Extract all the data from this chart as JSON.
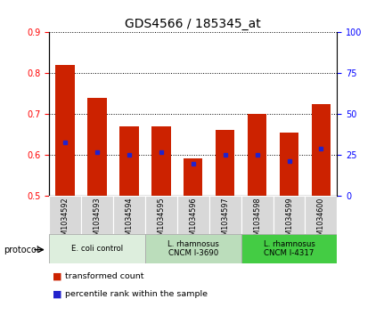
{
  "title": "GDS4566 / 185345_at",
  "samples": [
    "GSM1034592",
    "GSM1034593",
    "GSM1034594",
    "GSM1034595",
    "GSM1034596",
    "GSM1034597",
    "GSM1034598",
    "GSM1034599",
    "GSM1034600"
  ],
  "transformed_counts": [
    0.82,
    0.74,
    0.67,
    0.67,
    0.59,
    0.66,
    0.7,
    0.655,
    0.725
  ],
  "percentile_ranks": [
    0.63,
    0.607,
    0.6,
    0.607,
    0.578,
    0.6,
    0.6,
    0.585,
    0.615
  ],
  "bar_bottom": 0.5,
  "ylim": [
    0.5,
    0.9
  ],
  "yticks_left": [
    0.5,
    0.6,
    0.7,
    0.8,
    0.9
  ],
  "yticks_right": [
    0,
    25,
    50,
    75,
    100
  ],
  "bar_color": "#cc2200",
  "dot_color": "#2222cc",
  "protocols": [
    {
      "label": "E. coli control",
      "start": 0,
      "end": 3,
      "color": "#ddeecc"
    },
    {
      "label": "L. rhamnosus\nCNCM I-3690",
      "start": 3,
      "end": 6,
      "color": "#bbddaa"
    },
    {
      "label": "L. rhamnosus\nCNCM I-4317",
      "start": 6,
      "end": 9,
      "color": "#44cc44"
    }
  ],
  "legend_bar_label": "transformed count",
  "legend_dot_label": "percentile rank within the sample",
  "background_color": "#ffffff",
  "title_fontsize": 10,
  "tick_fontsize": 7,
  "bar_width": 0.6
}
